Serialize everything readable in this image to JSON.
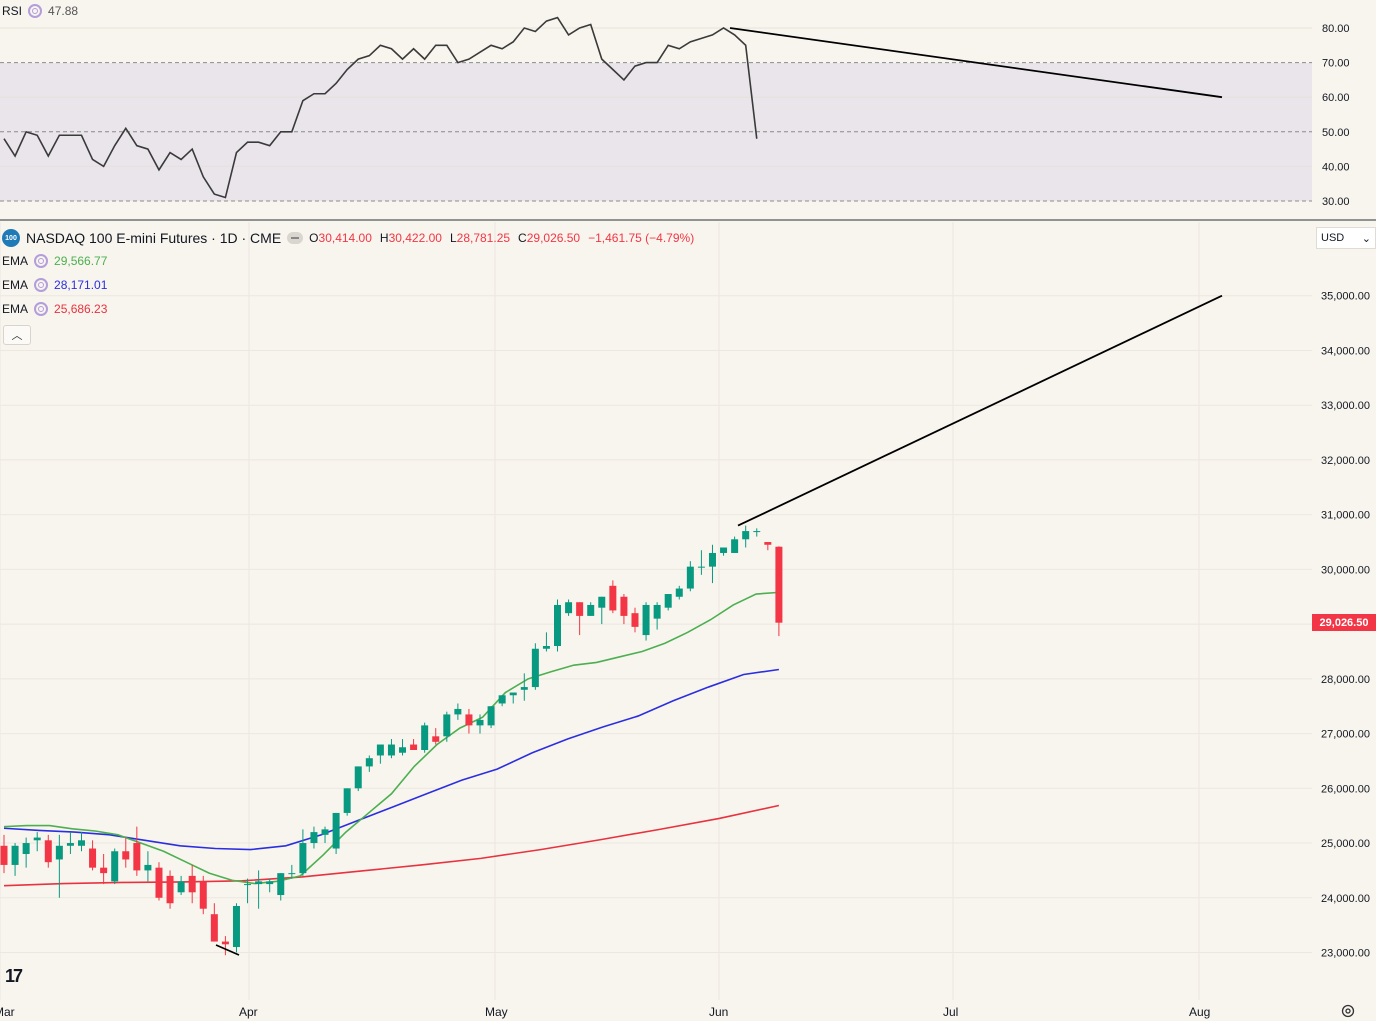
{
  "rsi": {
    "label": "RSI",
    "value": "47.88",
    "ticks": [
      "80.00",
      "70.00",
      "60.00",
      "50.00",
      "40.00",
      "30.00"
    ],
    "series": [
      48,
      43,
      50,
      49,
      43,
      49,
      49,
      49,
      42,
      40,
      46,
      51,
      46,
      45,
      39,
      44,
      42,
      45,
      37,
      32,
      31,
      44,
      47,
      47,
      46,
      50,
      50,
      59,
      61,
      61,
      64,
      68,
      71,
      72,
      75,
      74,
      71,
      74,
      71,
      75,
      75,
      70,
      71,
      73,
      75,
      74,
      76,
      80,
      79,
      82,
      83,
      78,
      80,
      81,
      71,
      68,
      65,
      69,
      70,
      70,
      75,
      74,
      76,
      77,
      78,
      80,
      78,
      75,
      48
    ],
    "trendline": {
      "from": 80,
      "to": 60
    },
    "bands": {
      "upper": 70,
      "lower": 30,
      "mid": 50
    }
  },
  "main": {
    "badge": "100",
    "symbol": "NASDAQ 100 E-mini Futures · 1D · CME",
    "ohlc": {
      "o_label": "O",
      "o": "30,414.00",
      "h_label": "H",
      "h": "30,422.00",
      "l_label": "L",
      "l": "28,781.25",
      "c_label": "C",
      "c": "29,026.50",
      "change": "−1,461.75 (−4.79%)"
    },
    "emas": [
      {
        "label": "EMA",
        "value": "29,566.77",
        "color": "#4caf50"
      },
      {
        "label": "EMA",
        "value": "28,171.01",
        "color": "#2b2ee0"
      },
      {
        "label": "EMA",
        "value": "25,686.23",
        "color": "#e8323f"
      }
    ],
    "currency": "USD",
    "last_price": "29,026.50",
    "price_ticks": [
      "35,000.00",
      "34,000.00",
      "33,000.00",
      "32,000.00",
      "31,000.00",
      "30,000.00",
      "28,000.00",
      "27,000.00",
      "26,000.00",
      "25,000.00",
      "24,000.00",
      "23,000.00"
    ],
    "time_labels": [
      "Mar",
      "Apr",
      "May",
      "Jun",
      "Jul",
      "Aug"
    ]
  },
  "chart_data": {
    "type": "candlestick",
    "title": "NASDAQ 100 E-mini Futures · 1D · CME",
    "ylim": [
      22700,
      35400
    ],
    "colors": {
      "up": "#089981",
      "down": "#f23645"
    },
    "candles": [
      [
        24950,
        25150,
        24450,
        24600
      ],
      [
        24600,
        25000,
        24400,
        24950
      ],
      [
        24800,
        25100,
        24550,
        25000
      ],
      [
        25050,
        25200,
        24850,
        25100
      ],
      [
        25050,
        25150,
        24550,
        24650
      ],
      [
        24700,
        25150,
        24000,
        24950
      ],
      [
        24950,
        25200,
        24800,
        25000
      ],
      [
        24950,
        25200,
        24850,
        25050
      ],
      [
        24900,
        25050,
        24500,
        24550
      ],
      [
        24550,
        24800,
        24250,
        24450
      ],
      [
        24300,
        24900,
        24250,
        24850
      ],
      [
        24850,
        25100,
        24550,
        24700
      ],
      [
        25000,
        25300,
        24400,
        24500
      ],
      [
        24500,
        24850,
        24300,
        24600
      ],
      [
        24550,
        24650,
        23950,
        24000
      ],
      [
        24400,
        24500,
        23800,
        23900
      ],
      [
        24100,
        24400,
        24050,
        24300
      ],
      [
        24400,
        24600,
        23900,
        24100
      ],
      [
        24300,
        24400,
        23700,
        23800
      ],
      [
        23700,
        23900,
        23200,
        23200
      ],
      [
        23200,
        23300,
        22950,
        23150
      ],
      [
        23100,
        23900,
        23000,
        23850
      ],
      [
        24250,
        24350,
        23900,
        24250
      ],
      [
        24250,
        24500,
        23800,
        24300
      ],
      [
        24250,
        24350,
        24100,
        24300
      ],
      [
        24050,
        24450,
        23950,
        24450
      ],
      [
        24450,
        24600,
        24350,
        24450
      ],
      [
        24450,
        25250,
        24400,
        25000
      ],
      [
        25000,
        25300,
        24900,
        25200
      ],
      [
        25150,
        25300,
        25000,
        25250
      ],
      [
        24900,
        25550,
        24800,
        25550
      ],
      [
        25550,
        26000,
        25500,
        26000
      ],
      [
        26000,
        26400,
        25950,
        26400
      ],
      [
        26400,
        26600,
        26300,
        26550
      ],
      [
        26600,
        26800,
        26450,
        26800
      ],
      [
        26600,
        26900,
        26550,
        26800
      ],
      [
        26650,
        26900,
        26600,
        26750
      ],
      [
        26800,
        26900,
        26700,
        26700
      ],
      [
        26700,
        27200,
        26650,
        27150
      ],
      [
        26950,
        27100,
        26800,
        26850
      ],
      [
        26950,
        27400,
        26850,
        27350
      ],
      [
        27350,
        27550,
        27250,
        27450
      ],
      [
        27350,
        27450,
        27000,
        27150
      ],
      [
        27150,
        27350,
        27000,
        27250
      ],
      [
        27150,
        27500,
        27100,
        27500
      ],
      [
        27550,
        27700,
        27500,
        27700
      ],
      [
        27700,
        27750,
        27550,
        27750
      ],
      [
        27800,
        28100,
        27600,
        27850
      ],
      [
        27850,
        28650,
        27800,
        28550
      ],
      [
        28550,
        28850,
        28500,
        28600
      ],
      [
        28600,
        29450,
        28500,
        29350
      ],
      [
        29200,
        29450,
        29150,
        29400
      ],
      [
        29400,
        29400,
        28800,
        29150
      ],
      [
        29150,
        29400,
        29150,
        29350
      ],
      [
        29300,
        29500,
        29000,
        29500
      ],
      [
        29700,
        29800,
        29200,
        29250
      ],
      [
        29500,
        29550,
        29000,
        29150
      ],
      [
        29200,
        29300,
        28850,
        28950
      ],
      [
        28800,
        29400,
        28700,
        29350
      ],
      [
        29100,
        29400,
        28900,
        29350
      ],
      [
        29300,
        29550,
        29250,
        29550
      ],
      [
        29500,
        29700,
        29450,
        29650
      ],
      [
        29650,
        30150,
        29600,
        30050
      ],
      [
        30050,
        30350,
        29900,
        30050
      ],
      [
        30050,
        30450,
        29750,
        30300
      ],
      [
        30300,
        30400,
        30250,
        30400
      ],
      [
        30300,
        30600,
        30300,
        30550
      ],
      [
        30550,
        30800,
        30400,
        30700
      ],
      [
        30700,
        30750,
        30600,
        30700
      ],
      [
        30500,
        30500,
        30350,
        30450
      ],
      [
        30414,
        30422,
        28781,
        29026
      ]
    ],
    "ema20": [
      25300,
      25320,
      25320,
      25260,
      25220,
      25150,
      25000,
      24850,
      24650,
      24450,
      24320,
      24260,
      24300,
      24400,
      24780,
      25200,
      25550,
      25900,
      26400,
      26800,
      27100,
      27300,
      27750,
      28000,
      28130,
      28250,
      28300,
      28400,
      28500,
      28650,
      28850,
      29080,
      29350,
      29550,
      29580
    ],
    "ema50": [
      25270,
      25230,
      25200,
      25150,
      25050,
      24950,
      24900,
      24880,
      24950,
      25150,
      25400,
      25650,
      25900,
      26150,
      26350,
      26650,
      26900,
      27120,
      27320,
      27600,
      27850,
      28080,
      28171
    ],
    "ema200": [
      24220,
      24260,
      24280,
      24290,
      24310,
      24380,
      24490,
      24600,
      24720,
      24880,
      25060,
      25250,
      25450,
      25686
    ],
    "price_trendline": {
      "from": 30800,
      "to": 35000
    }
  }
}
